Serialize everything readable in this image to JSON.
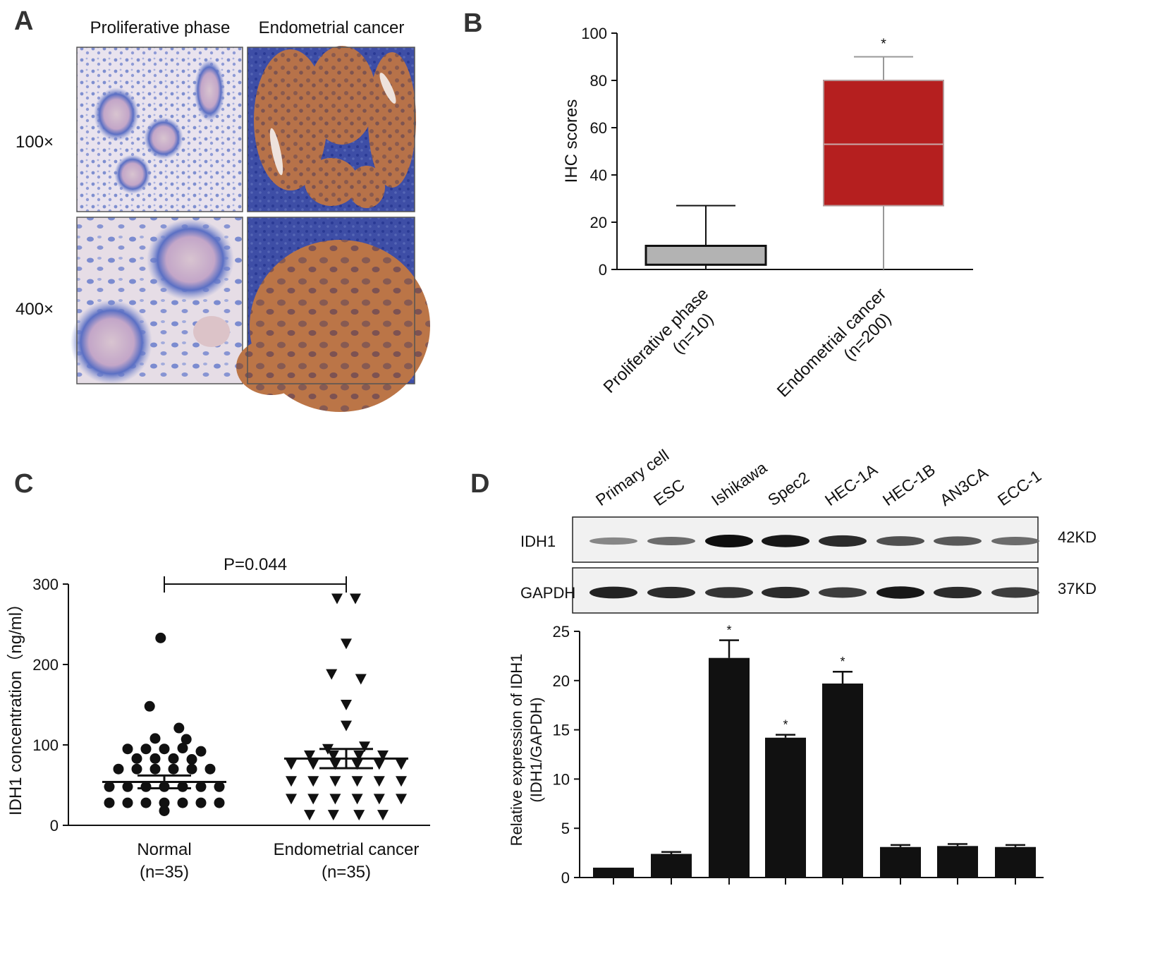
{
  "panels": {
    "a": {
      "letter": "A",
      "columns": [
        "Proliferative phase",
        "Endometrial cancer"
      ],
      "rows": [
        "100×",
        "400×"
      ]
    },
    "b": {
      "letter": "B"
    },
    "c": {
      "letter": "C"
    },
    "d": {
      "letter": "D",
      "lanes": [
        "Primary cell",
        "ESC",
        "Ishikawa",
        "Spec2",
        "HEC-1A",
        "HEC-1B",
        "AN3CA",
        "ECC-1"
      ],
      "bands": [
        {
          "name": "IDH1",
          "size": "42KD",
          "intensities": [
            0.35,
            0.5,
            1.0,
            0.95,
            0.85,
            0.65,
            0.6,
            0.5
          ]
        },
        {
          "name": "GAPDH",
          "size": "37KD",
          "intensities": [
            0.9,
            0.85,
            0.8,
            0.85,
            0.75,
            0.95,
            0.85,
            0.75
          ]
        }
      ]
    }
  },
  "chart_data": [
    {
      "id": "B",
      "type": "box",
      "title": "",
      "xlabel": "",
      "ylabel": "IHC scores",
      "ylim": [
        0,
        100
      ],
      "yticks": [
        0,
        20,
        40,
        60,
        80,
        100
      ],
      "categories": [
        {
          "line1": "Proliferative  phase",
          "line2": "(n=10)"
        },
        {
          "line1": "Endometrial cancer",
          "line2": "(n=200)"
        }
      ],
      "boxes": [
        {
          "min": 0,
          "q1": 2,
          "median": 2,
          "q3": 10,
          "max": 27,
          "color": "#b3b3b3",
          "annotation": ""
        },
        {
          "min": 0,
          "q1": 27,
          "median": 53,
          "q3": 80,
          "max": 90,
          "color": "#b51f1f",
          "annotation": "*"
        }
      ]
    },
    {
      "id": "C",
      "type": "scatter",
      "title": "",
      "xlabel": "",
      "ylabel": "IDH1 concentration（ng/ml）",
      "ylim": [
        0,
        300
      ],
      "yticks": [
        0,
        100,
        200,
        300
      ],
      "categories": [
        {
          "line1": "Normal",
          "line2": "(n=35)"
        },
        {
          "line1": "Endometrial cancer",
          "line2": "(n=35)"
        }
      ],
      "significance": "P=0.044",
      "series": [
        {
          "marker": "circle",
          "mean": 54,
          "sem": 8,
          "points": [
            [
              -0.02,
              233
            ],
            [
              -0.08,
              148
            ],
            [
              0.08,
              121
            ],
            [
              -0.05,
              108
            ],
            [
              0.12,
              107
            ],
            [
              -0.2,
              95
            ],
            [
              -0.1,
              95
            ],
            [
              0.0,
              95
            ],
            [
              0.1,
              96
            ],
            [
              0.2,
              92
            ],
            [
              -0.15,
              83
            ],
            [
              -0.05,
              83
            ],
            [
              0.05,
              83
            ],
            [
              0.15,
              82
            ],
            [
              -0.25,
              70
            ],
            [
              -0.15,
              70
            ],
            [
              -0.05,
              70
            ],
            [
              0.05,
              70
            ],
            [
              0.15,
              70
            ],
            [
              0.25,
              70
            ],
            [
              -0.3,
              48
            ],
            [
              -0.2,
              48
            ],
            [
              -0.1,
              48
            ],
            [
              0.0,
              48
            ],
            [
              0.1,
              48
            ],
            [
              0.2,
              48
            ],
            [
              0.3,
              48
            ],
            [
              -0.3,
              28
            ],
            [
              -0.2,
              28
            ],
            [
              -0.1,
              28
            ],
            [
              0.0,
              28
            ],
            [
              0.1,
              28
            ],
            [
              0.2,
              28
            ],
            [
              0.3,
              28
            ],
            [
              0.0,
              18
            ]
          ]
        },
        {
          "marker": "triangle-down",
          "mean": 83,
          "sem": 12,
          "points": [
            [
              -0.05,
              282
            ],
            [
              0.05,
              282
            ],
            [
              0.0,
              226
            ],
            [
              -0.08,
              188
            ],
            [
              0.08,
              182
            ],
            [
              0.0,
              150
            ],
            [
              0.0,
              124
            ],
            [
              -0.1,
              95
            ],
            [
              0.1,
              98
            ],
            [
              -0.2,
              87
            ],
            [
              -0.07,
              87
            ],
            [
              0.07,
              87
            ],
            [
              0.2,
              87
            ],
            [
              -0.3,
              76
            ],
            [
              -0.18,
              76
            ],
            [
              -0.06,
              76
            ],
            [
              0.06,
              76
            ],
            [
              0.18,
              76
            ],
            [
              0.3,
              76
            ],
            [
              -0.3,
              55
            ],
            [
              -0.18,
              55
            ],
            [
              -0.06,
              55
            ],
            [
              0.06,
              55
            ],
            [
              0.18,
              55
            ],
            [
              0.3,
              55
            ],
            [
              -0.3,
              33
            ],
            [
              -0.18,
              33
            ],
            [
              -0.06,
              33
            ],
            [
              0.06,
              33
            ],
            [
              0.18,
              33
            ],
            [
              0.3,
              33
            ],
            [
              -0.2,
              13
            ],
            [
              -0.07,
              13
            ],
            [
              0.07,
              13
            ],
            [
              0.2,
              13
            ]
          ]
        }
      ]
    },
    {
      "id": "D",
      "type": "bar",
      "title": "",
      "xlabel": "",
      "ylabel_line1": "Relative expression of IDH1",
      "ylabel_line2": "(IDH1/GAPDH)",
      "ylim": [
        0,
        25
      ],
      "yticks": [
        0,
        5,
        10,
        15,
        20,
        25
      ],
      "categories": [
        "Primary cell",
        "ESC",
        "Ishikawa",
        "Spec2",
        "HEC-1A",
        "HEC-1B",
        "AN3CA",
        "ECC-1"
      ],
      "values": [
        1.0,
        2.4,
        22.3,
        14.2,
        19.7,
        3.1,
        3.2,
        3.1
      ],
      "errors": [
        0,
        0.2,
        1.8,
        0.3,
        1.2,
        0.2,
        0.2,
        0.2
      ],
      "annotations": [
        "",
        "",
        "*",
        "*",
        "*",
        "",
        "",
        ""
      ],
      "color": "#111111"
    }
  ]
}
